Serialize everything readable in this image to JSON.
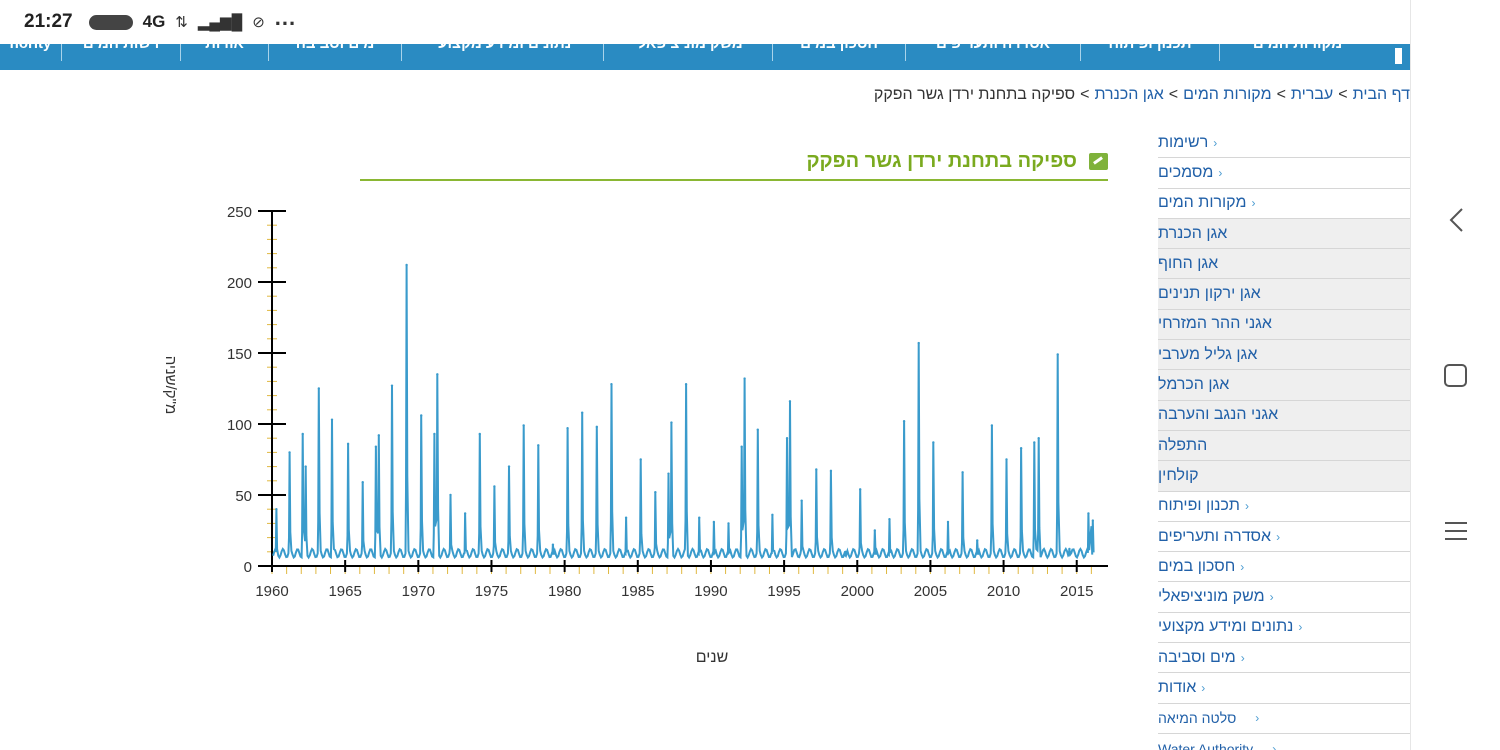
{
  "status_bar": {
    "time": "21:27",
    "network": "4G",
    "more": "..."
  },
  "top_nav": {
    "items": [
      "hority",
      "רשות המים",
      "אודות",
      "מים וסביבה",
      "נתונים ומידע מקצועי",
      "משק מוניציפאלי",
      "חסכון במים",
      "אסדרה ותעריפים",
      "תכנון ופיתוח",
      "מקורות המים"
    ]
  },
  "breadcrumb": {
    "items": [
      "דף הבית",
      "עברית",
      "מקורות המים",
      "אגן הכנרת"
    ],
    "current": "ספיקה בתחנת ירדן גשר הפקק",
    "separator": ">"
  },
  "sidebar": {
    "items": [
      {
        "label": "רשימות",
        "type": "top"
      },
      {
        "label": "מסמכים",
        "type": "top"
      },
      {
        "label": "מקורות המים",
        "type": "top"
      },
      {
        "label": "אגן הכנרת",
        "type": "sub"
      },
      {
        "label": "אגן החוף",
        "type": "sub"
      },
      {
        "label": "אגן ירקון תנינים",
        "type": "sub"
      },
      {
        "label": "אגני ההר המזרחי",
        "type": "sub"
      },
      {
        "label": "אגן גליל מערבי",
        "type": "sub"
      },
      {
        "label": "אגן הכרמל",
        "type": "sub"
      },
      {
        "label": "אגני הנגב והערבה",
        "type": "sub"
      },
      {
        "label": "התפלה",
        "type": "sub"
      },
      {
        "label": "קולחין",
        "type": "sub"
      },
      {
        "label": "תכנון ופיתוח",
        "type": "top"
      },
      {
        "label": "אסדרה ותעריפים",
        "type": "top"
      },
      {
        "label": "חסכון במים",
        "type": "top"
      },
      {
        "label": "משק מוניציפאלי",
        "type": "top"
      },
      {
        "label": "נתונים ומידע מקצועי",
        "type": "top"
      },
      {
        "label": "מים וסביבה",
        "type": "top"
      },
      {
        "label": "אודות",
        "type": "top"
      },
      {
        "label": "סלטה המיאה",
        "type": "small"
      },
      {
        "label": "Water Authority",
        "type": "small"
      }
    ]
  },
  "content": {
    "title": "ספיקה בתחנת ירדן גשר הפקק"
  },
  "colors": {
    "nav_bg": "#2a8bc2",
    "title_green": "#7aaa1f",
    "link_blue": "#2160a8",
    "series_blue": "#3a9bcc"
  },
  "chart_data": {
    "type": "line",
    "title": "",
    "xlabel": "שנים",
    "ylabel": "מ\"ק/שניה",
    "xlim": [
      1960,
      2017
    ],
    "ylim": [
      0,
      250
    ],
    "x_ticks": [
      1960,
      1965,
      1970,
      1975,
      1980,
      1985,
      1990,
      1995,
      2000,
      2005,
      2010,
      2015
    ],
    "y_ticks": [
      0,
      50,
      100,
      150,
      200,
      250
    ],
    "series": [
      {
        "annual_peaks": [
          [
            1960.3,
            40
          ],
          [
            1961.2,
            80
          ],
          [
            1962.1,
            93
          ],
          [
            1962.3,
            70
          ],
          [
            1963.2,
            125
          ],
          [
            1964.1,
            103
          ],
          [
            1965.2,
            86
          ],
          [
            1966.2,
            59
          ],
          [
            1967.1,
            84
          ],
          [
            1967.3,
            92
          ],
          [
            1968.2,
            127
          ],
          [
            1969.2,
            212
          ],
          [
            1970.2,
            106
          ],
          [
            1971.1,
            93
          ],
          [
            1971.3,
            135
          ],
          [
            1972.2,
            50
          ],
          [
            1973.2,
            37
          ],
          [
            1974.2,
            93
          ],
          [
            1975.2,
            56
          ],
          [
            1976.2,
            70
          ],
          [
            1977.2,
            99
          ],
          [
            1978.2,
            85
          ],
          [
            1979.2,
            15
          ],
          [
            1980.2,
            97
          ],
          [
            1981.2,
            108
          ],
          [
            1982.2,
            98
          ],
          [
            1983.2,
            128
          ],
          [
            1984.2,
            34
          ],
          [
            1985.2,
            75
          ],
          [
            1986.2,
            52
          ],
          [
            1987.1,
            65
          ],
          [
            1987.3,
            101
          ],
          [
            1988.3,
            128
          ],
          [
            1989.2,
            34
          ],
          [
            1990.2,
            31
          ],
          [
            1991.2,
            30
          ],
          [
            1992.1,
            84
          ],
          [
            1992.3,
            132
          ],
          [
            1993.2,
            96
          ],
          [
            1994.2,
            36
          ],
          [
            1995.2,
            90
          ],
          [
            1995.4,
            116
          ],
          [
            1996.2,
            46
          ],
          [
            1997.2,
            68
          ],
          [
            1998.2,
            67
          ],
          [
            1999.2,
            10
          ],
          [
            2000.2,
            54
          ],
          [
            2001.2,
            25
          ],
          [
            2002.2,
            33
          ],
          [
            2003.2,
            102
          ],
          [
            2004.2,
            157
          ],
          [
            2005.2,
            87
          ],
          [
            2006.2,
            31
          ],
          [
            2007.2,
            66
          ],
          [
            2008.2,
            18
          ],
          [
            2009.2,
            99
          ],
          [
            2010.2,
            75
          ],
          [
            2011.2,
            83
          ],
          [
            2012.1,
            87
          ],
          [
            2012.4,
            90
          ],
          [
            2013.7,
            149
          ],
          [
            2014.5,
            12
          ],
          [
            2015.8,
            37
          ],
          [
            2016.1,
            32
          ]
        ]
      }
    ]
  }
}
